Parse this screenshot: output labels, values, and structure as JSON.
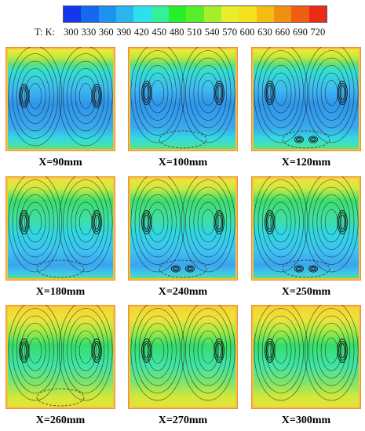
{
  "colorbar": {
    "prefix": "T: K:",
    "ticks": [
      "300",
      "330",
      "360",
      "390",
      "420",
      "450",
      "480",
      "510",
      "540",
      "570",
      "600",
      "630",
      "660",
      "690",
      "720"
    ],
    "colors": [
      "#1436ee",
      "#1668ee",
      "#1d93ef",
      "#2ab5ef",
      "#2ce0ef",
      "#35ef9c",
      "#2aee2a",
      "#56ef2a",
      "#a4ef2a",
      "#e8ef2a",
      "#f5e11b",
      "#f5bc14",
      "#f08f10",
      "#ee5e10",
      "#ec2a17"
    ]
  },
  "panels": [
    {
      "label": "X=90mm",
      "temp": "cold",
      "feature": "side-vortices"
    },
    {
      "label": "X=100mm",
      "temp": "cold",
      "feature": "bottom-ellipse"
    },
    {
      "label": "X=120mm",
      "temp": "cold",
      "feature": "bottom-eddies"
    },
    {
      "label": "X=180mm",
      "temp": "warm",
      "feature": "bottom-ellipse"
    },
    {
      "label": "X=240mm",
      "temp": "warm",
      "feature": "bottom-eddies"
    },
    {
      "label": "X=250mm",
      "temp": "warm",
      "feature": "bottom-eddies"
    },
    {
      "label": "X=260mm",
      "temp": "hot",
      "feature": "bottom-ellipse"
    },
    {
      "label": "X=270mm",
      "temp": "hot",
      "feature": "none"
    },
    {
      "label": "X=300mm",
      "temp": "hot",
      "feature": "none"
    }
  ]
}
